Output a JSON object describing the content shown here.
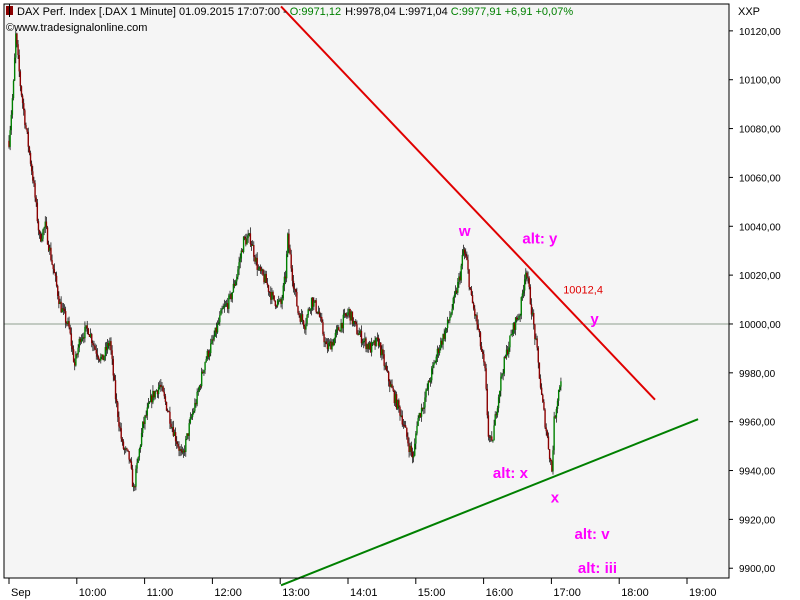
{
  "header": {
    "instrument": "DAX Perf. Index [.DAX  1 Minute] 01.09.2015 17:07:00 - ",
    "open": "O:9971,12",
    "high": "H:9978,04",
    "low": "L:9971,04",
    "close": "C:9977,91 +6,91 +0,07%",
    "source": "www.tradesignalonline.com",
    "exchange": "XXP"
  },
  "colors": {
    "up": "#008000",
    "down": "#8b0000",
    "resistance": "#e00000",
    "support": "#008000",
    "annotation": "#ff00ff",
    "frame": "#000000",
    "plot_bg": "#f5f5f5",
    "reference_line": "#90a090"
  },
  "chart_data": {
    "type": "candlestick",
    "x_ticks": [
      "Sep",
      "10:00",
      "11:00",
      "12:00",
      "13:00",
      "14:01",
      "15:00",
      "16:00",
      "17:00",
      "18:00",
      "19:00"
    ],
    "y_ticks": [
      9900,
      9920,
      9940,
      9960,
      9980,
      10000,
      10020,
      10040,
      10060,
      10080,
      10100,
      10120
    ],
    "y_tick_labels": [
      "9900,00",
      "9920,00",
      "9940,00",
      "9960,00",
      "9980,00",
      "10000,00",
      "10020,00",
      "10040,00",
      "10060,00",
      "10080,00",
      "10100,00",
      "10120,00"
    ],
    "ylim": [
      9896,
      10131
    ],
    "grid": false,
    "reference_line_y": 10000,
    "price_path": [
      [
        "09:00",
        10075
      ],
      [
        "09:04",
        10098
      ],
      [
        "09:06",
        10118
      ],
      [
        "09:10",
        10098
      ],
      [
        "09:15",
        10080
      ],
      [
        "09:21",
        10060
      ],
      [
        "09:27",
        10035
      ],
      [
        "09:32",
        10040
      ],
      [
        "09:38",
        10025
      ],
      [
        "09:45",
        10008
      ],
      [
        "09:53",
        9998
      ],
      [
        "09:58",
        9983
      ],
      [
        "10:03",
        9995
      ],
      [
        "10:10",
        9998
      ],
      [
        "10:16",
        9990
      ],
      [
        "10:22",
        9985
      ],
      [
        "10:29",
        9993
      ],
      [
        "10:34",
        9970
      ],
      [
        "10:40",
        9950
      ],
      [
        "10:46",
        9945
      ],
      [
        "10:50",
        9932
      ],
      [
        "10:54",
        9945
      ],
      [
        "10:58",
        9958
      ],
      [
        "11:06",
        9970
      ],
      [
        "11:13",
        9975
      ],
      [
        "11:20",
        9965
      ],
      [
        "11:26",
        9955
      ],
      [
        "11:33",
        9945
      ],
      [
        "11:40",
        9960
      ],
      [
        "11:46",
        9970
      ],
      [
        "11:53",
        9985
      ],
      [
        "12:00",
        9993
      ],
      [
        "12:08",
        10005
      ],
      [
        "12:15",
        10010
      ],
      [
        "12:21",
        10020
      ],
      [
        "12:27",
        10034
      ],
      [
        "12:33",
        10035
      ],
      [
        "12:40",
        10022
      ],
      [
        "12:46",
        10018
      ],
      [
        "12:53",
        10010
      ],
      [
        "13:00",
        10008
      ],
      [
        "13:04",
        10020
      ],
      [
        "13:06",
        10035
      ],
      [
        "13:10",
        10020
      ],
      [
        "13:15",
        10005
      ],
      [
        "13:21",
        10000
      ],
      [
        "13:27",
        10010
      ],
      [
        "13:33",
        10005
      ],
      [
        "13:40",
        9990
      ],
      [
        "13:46",
        9993
      ],
      [
        "13:53",
        10000
      ],
      [
        "14:00",
        10005
      ],
      [
        "14:06",
        9998
      ],
      [
        "14:13",
        9993
      ],
      [
        "14:19",
        9990
      ],
      [
        "14:26",
        9993
      ],
      [
        "14:33",
        9980
      ],
      [
        "14:40",
        9970
      ],
      [
        "14:46",
        9963
      ],
      [
        "14:53",
        9950
      ],
      [
        "14:57",
        9945
      ],
      [
        "15:00",
        9960
      ],
      [
        "15:06",
        9968
      ],
      [
        "15:13",
        9980
      ],
      [
        "15:19",
        9990
      ],
      [
        "15:26",
        9998
      ],
      [
        "15:33",
        10010
      ],
      [
        "15:38",
        10020
      ],
      [
        "15:41",
        10030
      ],
      [
        "15:44",
        10025
      ],
      [
        "15:48",
        10010
      ],
      [
        "15:53",
        10000
      ],
      [
        "16:00",
        9980
      ],
      [
        "16:03",
        9955
      ],
      [
        "16:06",
        9950
      ],
      [
        "16:10",
        9965
      ],
      [
        "16:15",
        9980
      ],
      [
        "16:20",
        9990
      ],
      [
        "16:26",
        10000
      ],
      [
        "16:31",
        10005
      ],
      [
        "16:36",
        10023
      ],
      [
        "16:40",
        10010
      ],
      [
        "16:46",
        9988
      ],
      [
        "16:50",
        9970
      ],
      [
        "16:56",
        9950
      ],
      [
        "16:59",
        9940
      ],
      [
        "17:01",
        9960
      ],
      [
        "17:04",
        9970
      ],
      [
        "17:07",
        9978
      ]
    ],
    "trendlines": [
      {
        "name": "resistance",
        "from": [
          "13:00",
          10130
        ],
        "to": [
          "18:30",
          9969
        ]
      },
      {
        "name": "support",
        "from": [
          "13:00",
          9893
        ],
        "to": [
          "19:08",
          9961
        ]
      }
    ],
    "annotations": [
      {
        "text": "w",
        "at": [
          "15:37",
          10036
        ],
        "color": "annotation"
      },
      {
        "text": "alt: y",
        "at": [
          "16:33",
          10033
        ],
        "color": "annotation"
      },
      {
        "text": "10012,4",
        "at": [
          "17:09",
          10012.4
        ],
        "color": "resistance"
      },
      {
        "text": "y",
        "at": [
          "17:33",
          10000
        ],
        "color": "annotation"
      },
      {
        "text": "alt: x",
        "at": [
          "16:07",
          9937
        ],
        "color": "annotation"
      },
      {
        "text": "x",
        "at": [
          "16:58",
          9927
        ],
        "color": "annotation"
      },
      {
        "text": "alt: v",
        "at": [
          "17:19",
          9912
        ],
        "color": "annotation"
      },
      {
        "text": "alt: iii",
        "at": [
          "17:22",
          9898
        ],
        "color": "annotation"
      }
    ]
  }
}
